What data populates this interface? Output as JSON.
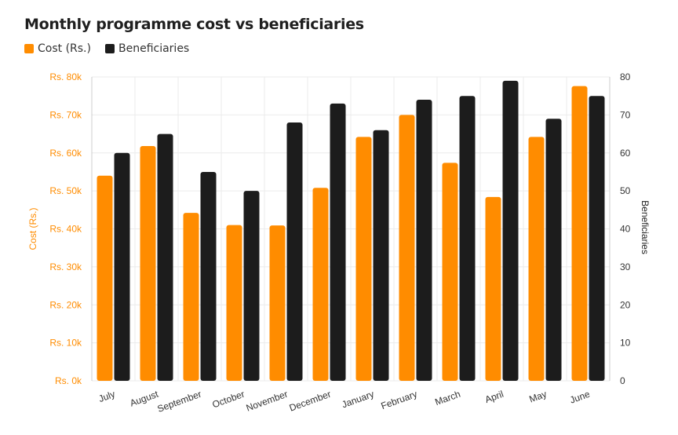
{
  "colors": {
    "cost": "#FF8C00",
    "beneficiaries": "#1C1C1C",
    "grid": "#EBEBEB",
    "axis_line": "#CCCCCC"
  },
  "chart_data": {
    "type": "bar",
    "title": "Monthly programme cost vs beneficiaries",
    "categories": [
      "July",
      "August",
      "September",
      "October",
      "November",
      "December",
      "January",
      "February",
      "March",
      "April",
      "May",
      "June"
    ],
    "series": [
      {
        "name": "Cost (Rs.)",
        "axis": "left",
        "color": "#FF8C00",
        "values": [
          54000,
          61800,
          44200,
          41000,
          40900,
          50800,
          64200,
          70000,
          57400,
          48400,
          64200,
          77600
        ]
      },
      {
        "name": "Beneficiaries",
        "axis": "right",
        "color": "#1C1C1C",
        "values": [
          60,
          65,
          55,
          50,
          68,
          73,
          66,
          74,
          75,
          79,
          69,
          75
        ]
      }
    ],
    "ylabel": "Cost (Rs.)",
    "y2label": "Beneficiaries",
    "ylim": [
      0,
      80000
    ],
    "y2lim": [
      0,
      80
    ],
    "yticks": [
      "Rs. 0k",
      "Rs. 10k",
      "Rs. 20k",
      "Rs. 30k",
      "Rs. 40k",
      "Rs. 50k",
      "Rs. 60k",
      "Rs. 70k",
      "Rs. 80k"
    ],
    "y2ticks": [
      "0",
      "10",
      "20",
      "30",
      "40",
      "50",
      "60",
      "70",
      "80"
    ],
    "grid": true,
    "legend": "top-left"
  }
}
